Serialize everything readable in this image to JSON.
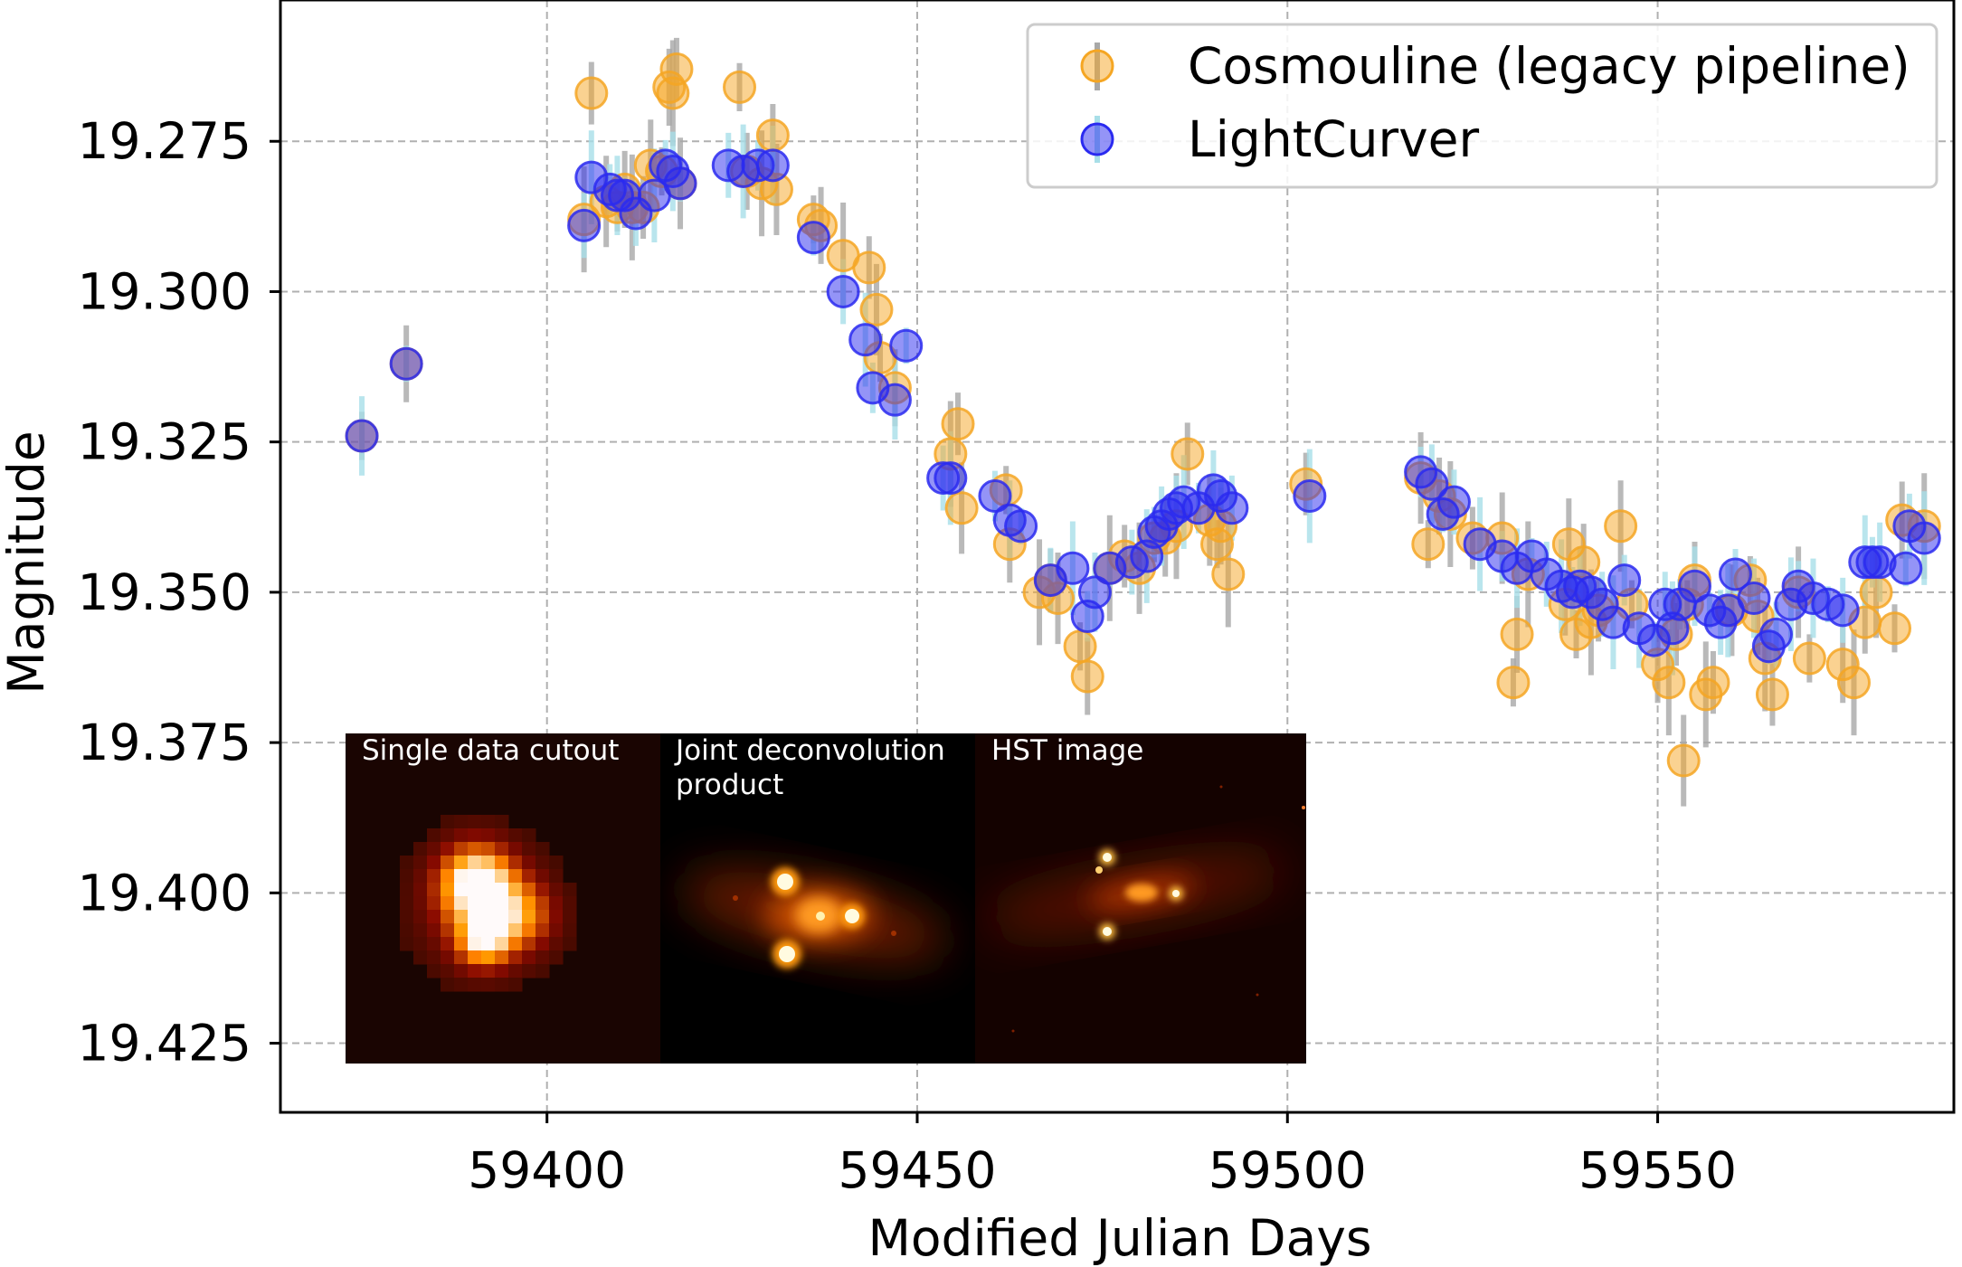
{
  "chart_data": {
    "type": "scatter",
    "xlabel": "Modified Julian Days",
    "ylabel": "Magnitude",
    "xlim": [
      59364,
      59590
    ],
    "ylim": [
      19.4365,
      19.2515
    ],
    "y_inverted": true,
    "grid": true,
    "legend_position": "top-right",
    "x_ticks": [
      59400,
      59450,
      59500,
      59550
    ],
    "x_tick_labels": [
      "59400",
      "59450",
      "59500",
      "59550"
    ],
    "y_ticks": [
      19.275,
      19.3,
      19.325,
      19.35,
      19.375,
      19.4,
      19.425
    ],
    "y_tick_labels": [
      "19.275",
      "19.300",
      "19.325",
      "19.350",
      "19.375",
      "19.400",
      "19.425"
    ],
    "series": [
      {
        "name": "Cosmouline (legacy pipeline)",
        "color": "#f5a623",
        "errorbar_color": "#a8a8a8",
        "x": [
          59375.0,
          59381.0,
          59405.0,
          59406.0,
          59408.0,
          59409.5,
          59410.5,
          59411.5,
          59413.0,
          59414.0,
          59415.5,
          59416.5,
          59417.0,
          59417.5,
          59418.0,
          59426.0,
          59427.0,
          59429.0,
          59430.5,
          59431.0,
          59436.0,
          59437.0,
          59440.0,
          59443.5,
          59444.5,
          59445.0,
          59447.0,
          59454.5,
          59455.5,
          59456.0,
          59462.0,
          59462.5,
          59466.5,
          59468.0,
          59469.0,
          59472.0,
          59473.0,
          59476.0,
          59478.0,
          59480.0,
          59482.0,
          59483.5,
          59485.0,
          59486.5,
          59489.5,
          59490.5,
          59491.0,
          59492.0,
          59502.5,
          59518.0,
          59519.0,
          59520.5,
          59522.0,
          59525.0,
          59529.0,
          59530.5,
          59531.0,
          59532.5,
          59537.5,
          59538.0,
          59539.0,
          59540.0,
          59541.0,
          59542.0,
          59545.0,
          59546.5,
          59550.0,
          59551.5,
          59552.5,
          59553.5,
          59554.0,
          59555.0,
          59556.5,
          59557.5,
          59560.0,
          59562.5,
          59563.5,
          59564.5,
          59565.5,
          59569.0,
          59570.5,
          59575.0,
          59576.5,
          59578.0,
          59579.5,
          59582.0,
          59583.0,
          59586.0
        ],
        "y": [
          19.324,
          19.312,
          19.288,
          19.267,
          19.285,
          19.286,
          19.283,
          19.286,
          19.286,
          19.279,
          19.28,
          19.266,
          19.267,
          19.263,
          19.282,
          19.266,
          19.28,
          19.282,
          19.274,
          19.283,
          19.288,
          19.289,
          19.294,
          19.296,
          19.303,
          19.311,
          19.316,
          19.327,
          19.322,
          19.336,
          19.333,
          19.342,
          19.35,
          19.348,
          19.351,
          19.359,
          19.364,
          19.346,
          19.344,
          19.346,
          19.341,
          19.341,
          19.339,
          19.327,
          19.338,
          19.342,
          19.339,
          19.347,
          19.332,
          19.331,
          19.342,
          19.334,
          19.337,
          19.341,
          19.341,
          19.365,
          19.357,
          19.347,
          19.352,
          19.342,
          19.357,
          19.345,
          19.355,
          19.353,
          19.339,
          19.352,
          19.362,
          19.365,
          19.357,
          19.378,
          19.352,
          19.348,
          19.367,
          19.365,
          19.353,
          19.348,
          19.354,
          19.361,
          19.367,
          19.35,
          19.361,
          19.362,
          19.365,
          19.355,
          19.35,
          19.356,
          19.338,
          19.339
        ]
      },
      {
        "name": "LightCurver",
        "color": "#2a2af0",
        "errorbar_color": "#a8dfe8",
        "x": [
          59375.0,
          59381.0,
          59405.0,
          59406.0,
          59408.5,
          59409.5,
          59410.5,
          59412.0,
          59414.5,
          59416.0,
          59417.0,
          59418.0,
          59424.5,
          59426.5,
          59428.5,
          59430.5,
          59436.0,
          59440.0,
          59443.0,
          59444.0,
          59447.0,
          59448.5,
          59453.5,
          59454.5,
          59460.5,
          59462.5,
          59464.0,
          59468.0,
          59471.0,
          59473.0,
          59474.0,
          59476.0,
          59479.0,
          59481.0,
          59482.0,
          59483.0,
          59484.0,
          59485.0,
          59486.0,
          59488.0,
          59490.0,
          59491.0,
          59492.5,
          59503.0,
          59518.0,
          59519.5,
          59521.0,
          59522.5,
          59526.0,
          59529.0,
          59531.0,
          59533.0,
          59535.0,
          59537.0,
          59538.5,
          59539.5,
          59541.0,
          59542.5,
          59544.0,
          59545.5,
          59547.5,
          59549.5,
          59551.0,
          59552.0,
          59553.0,
          59555.0,
          59557.0,
          59558.5,
          59559.5,
          59560.5,
          59563.0,
          59565.0,
          59566.0,
          59568.0,
          59569.0,
          59571.0,
          59573.0,
          59575.0,
          59578.0,
          59579.0,
          59580.0,
          59583.5,
          59584.0,
          59586.0
        ],
        "y": [
          19.324,
          19.312,
          19.289,
          19.281,
          19.283,
          19.284,
          19.284,
          19.287,
          19.284,
          19.279,
          19.28,
          19.282,
          19.279,
          19.28,
          19.279,
          19.279,
          19.291,
          19.3,
          19.308,
          19.316,
          19.318,
          19.309,
          19.331,
          19.331,
          19.334,
          19.338,
          19.339,
          19.348,
          19.346,
          19.354,
          19.35,
          19.346,
          19.345,
          19.344,
          19.34,
          19.339,
          19.337,
          19.336,
          19.335,
          19.336,
          19.333,
          19.334,
          19.336,
          19.334,
          19.33,
          19.332,
          19.337,
          19.335,
          19.342,
          19.344,
          19.346,
          19.344,
          19.347,
          19.349,
          19.35,
          19.349,
          19.35,
          19.352,
          19.355,
          19.348,
          19.356,
          19.358,
          19.352,
          19.356,
          19.352,
          19.349,
          19.353,
          19.355,
          19.353,
          19.347,
          19.351,
          19.359,
          19.357,
          19.352,
          19.349,
          19.351,
          19.352,
          19.353,
          19.345,
          19.345,
          19.345,
          19.346,
          19.339,
          19.341
        ]
      }
    ]
  },
  "inset": {
    "panels": [
      {
        "title": "Single data cutout"
      },
      {
        "title": "Joint deconvolution product"
      },
      {
        "title": "HST image"
      }
    ]
  }
}
